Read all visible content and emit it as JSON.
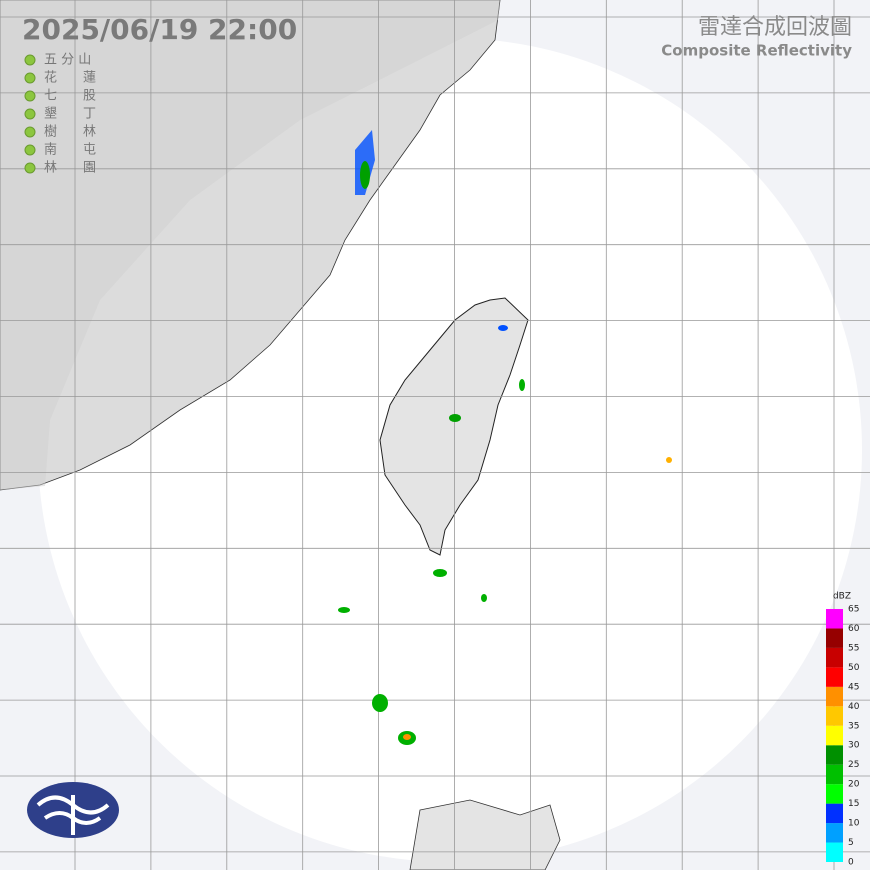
{
  "header": {
    "timestamp": "2025/06/19  22:00",
    "title": "雷達合成回波圖",
    "subtitle": "Composite Reflectivity"
  },
  "stations": [
    "五 分 山",
    "花　　蓮",
    "七　　股",
    "墾　　丁",
    "樹　　林",
    "南　　屯",
    "林　　園"
  ],
  "legend": {
    "unit": "dBZ",
    "ticks": [
      0,
      5,
      10,
      15,
      20,
      25,
      30,
      35,
      40,
      45,
      50,
      55,
      60,
      65
    ],
    "colors": [
      "#00ffff",
      "#00a0ff",
      "#0030ff",
      "#00ff00",
      "#00c000",
      "#009000",
      "#ffff00",
      "#ffc800",
      "#ff9000",
      "#ff0000",
      "#c80000",
      "#960000",
      "#ff00ff"
    ]
  }
}
